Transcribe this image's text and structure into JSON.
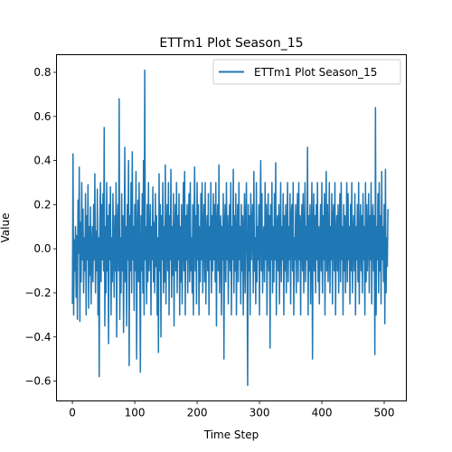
{
  "chart_data": {
    "type": "line",
    "title": "ETTm1 Plot Season_15",
    "xlabel": "Time Step",
    "ylabel": "Value",
    "xlim": [
      -25.5,
      535.5
    ],
    "ylim": [
      -0.69,
      0.88
    ],
    "xticks": [
      0,
      100,
      200,
      300,
      400,
      500
    ],
    "yticks": [
      -0.6,
      -0.4,
      -0.2,
      0.0,
      0.2,
      0.4,
      0.6,
      0.8
    ],
    "ytick_labels": [
      "−0.6",
      "−0.4",
      "−0.2",
      "0.0",
      "0.2",
      "0.4",
      "0.6",
      "0.8"
    ],
    "grid": false,
    "legend_position": "top-right",
    "series": [
      {
        "name": "ETTm1 Plot Season_15",
        "color": "#1f77b4",
        "x_start": 0,
        "x_step": 1,
        "values": [
          -0.25,
          0.43,
          -0.3,
          0.04,
          -0.1,
          0.1,
          -0.22,
          0.06,
          -0.32,
          0.22,
          -0.02,
          0.37,
          -0.33,
          0.12,
          -0.15,
          0.3,
          -0.05,
          0.18,
          -0.2,
          0.05,
          -0.1,
          0.25,
          -0.3,
          0.15,
          -0.05,
          0.29,
          -0.27,
          0.1,
          -0.12,
          0.19,
          -0.25,
          0.0,
          0.1,
          -0.15,
          0.2,
          -0.05,
          0.34,
          -0.2,
          0.08,
          -0.1,
          0.27,
          -0.3,
          0.05,
          -0.58,
          0.12,
          0.3,
          -0.15,
          0.2,
          -0.05,
          0.25,
          -0.1,
          0.55,
          -0.35,
          0.1,
          -0.2,
          0.3,
          -0.1,
          0.15,
          -0.43,
          0.2,
          -0.05,
          0.28,
          -0.3,
          0.05,
          -0.15,
          0.25,
          0.0,
          -0.22,
          0.15,
          -0.1,
          0.3,
          -0.4,
          0.1,
          0.2,
          -0.1,
          0.68,
          -0.32,
          0.05,
          -0.2,
          0.25,
          -0.1,
          0.15,
          -0.38,
          0.0,
          0.46,
          -0.15,
          0.1,
          -0.35,
          0.2,
          -0.05,
          0.4,
          -0.53,
          0.15,
          -0.1,
          0.3,
          -0.2,
          0.44,
          -0.05,
          0.1,
          -0.28,
          0.2,
          -0.1,
          0.35,
          -0.5,
          0.05,
          0.22,
          -0.15,
          0.3,
          -0.05,
          -0.56,
          0.15,
          -0.1,
          0.25,
          -0.2,
          0.4,
          -0.3,
          0.81,
          -0.05,
          0.1,
          -0.25,
          0.2,
          -0.15,
          0.3,
          -0.1,
          0.05,
          0.2,
          -0.3,
          0.1,
          -0.05,
          0.28,
          -0.15,
          0.12,
          -0.2,
          0.25,
          -0.08,
          0.15,
          -0.3,
          0.05,
          -0.47,
          0.34,
          -0.1,
          0.2,
          -0.4,
          0.15,
          -0.05,
          0.3,
          -0.2,
          0.1,
          -0.15,
          0.38,
          -0.25,
          0.05,
          0.2,
          -0.1,
          0.3,
          -0.3,
          0.15,
          -0.05,
          0.36,
          -0.22,
          0.1,
          -0.12,
          0.25,
          -0.35,
          0.05,
          0.2,
          -0.1,
          0.3,
          -0.2,
          0.15,
          -0.05,
          0.25,
          -0.3,
          0.1,
          -0.15,
          0.2,
          -0.25,
          0.05,
          0.3,
          -0.1,
          0.35,
          -0.3,
          0.15,
          -0.05,
          0.2,
          -0.2,
          0.1,
          0.25,
          -0.15,
          0.3,
          -0.1,
          0.05,
          -0.2,
          0.2,
          -0.3,
          0.1,
          0.37,
          -0.1,
          0.15,
          -0.25,
          0.3,
          -0.05,
          0.2,
          -0.3,
          0.1,
          -0.15,
          0.25,
          -0.05,
          0.3,
          -0.2,
          0.1,
          0.2,
          -0.15,
          0.3,
          -0.25,
          0.05,
          0.15,
          -0.1,
          0.25,
          -0.3,
          0.1,
          -0.05,
          0.3,
          -0.2,
          0.15,
          -0.1,
          0.25,
          -0.05,
          0.2,
          -0.15,
          0.3,
          -0.35,
          0.1,
          0.2,
          -0.1,
          0.38,
          -0.2,
          0.05,
          0.15,
          -0.3,
          0.1,
          -0.05,
          0.25,
          -0.5,
          0.1,
          0.2,
          -0.15,
          0.3,
          -0.05,
          0.15,
          -0.25,
          0.05,
          0.2,
          -0.1,
          0.3,
          -0.3,
          0.1,
          -0.05,
          0.36,
          -0.2,
          0.15,
          -0.1,
          0.25,
          -0.3,
          0.05,
          0.2,
          -0.15,
          0.3,
          -0.05,
          0.1,
          -0.25,
          0.2,
          -0.1,
          0.15,
          -0.3,
          0.05,
          0.25,
          -0.2,
          0.1,
          0.3,
          -0.05,
          -0.62,
          0.2,
          -0.1,
          0.15,
          -0.3,
          0.25,
          -0.05,
          0.1,
          0.2,
          -0.2,
          0.35,
          -0.1,
          0.05,
          -0.25,
          0.3,
          -0.15,
          0.1,
          -0.05,
          0.2,
          -0.3,
          0.15,
          0.4,
          -0.1,
          0.25,
          -0.2,
          0.05,
          0.1,
          -0.15,
          0.3,
          -0.05,
          0.2,
          -0.3,
          0.1,
          0.25,
          -0.1,
          0.15,
          -0.45,
          0.2,
          -0.05,
          0.3,
          -0.2,
          0.1,
          -0.15,
          0.25,
          -0.05,
          0.39,
          -0.3,
          0.1,
          0.15,
          -0.1,
          0.2,
          -0.25,
          0.05,
          0.3,
          -0.15,
          0.1,
          -0.05,
          0.25,
          -0.3,
          0.15,
          -0.1,
          0.2,
          -0.2,
          0.05,
          0.3,
          -0.15,
          0.1,
          -0.05,
          0.25,
          -0.25,
          0.15,
          0.2,
          -0.1,
          0.3,
          -0.3,
          0.05,
          -0.05,
          0.2,
          -0.2,
          0.1,
          0.25,
          -0.15,
          0.3,
          -0.05,
          0.15,
          -0.3,
          0.1,
          0.2,
          -0.1,
          0.25,
          -0.2,
          0.05,
          0.3,
          -0.15,
          0.1,
          -0.05,
          0.46,
          -0.3,
          0.15,
          -0.1,
          0.2,
          -0.25,
          0.05,
          0.3,
          -0.5,
          0.1,
          0.25,
          -0.1,
          0.15,
          -0.2,
          0.2,
          -0.05,
          0.3,
          -0.15,
          0.1,
          -0.25,
          0.05,
          0.2,
          -0.1,
          0.3,
          -0.2,
          0.15,
          -0.05,
          0.25,
          -0.3,
          0.1,
          0.35,
          -0.1,
          0.2,
          -0.15,
          0.05,
          0.3,
          -0.2,
          0.1,
          -0.05,
          0.25,
          -0.25,
          0.15,
          0.2,
          -0.1,
          0.3,
          -0.3,
          0.05,
          0.15,
          -0.1,
          0.2,
          -0.2,
          0.1,
          0.25,
          -0.15,
          0.3,
          -0.05,
          0.1,
          -0.3,
          0.2,
          -0.1,
          0.15,
          -0.2,
          0.05,
          0.3,
          -0.15,
          0.25,
          -0.05,
          0.1,
          -0.25,
          0.2,
          -0.1,
          0.3,
          -0.2,
          0.05,
          0.15,
          -0.1,
          0.25,
          -0.3,
          0.1,
          -0.05,
          0.2,
          -0.15,
          0.3,
          -0.25,
          0.05,
          0.2,
          -0.1,
          0.15,
          -0.2,
          0.25,
          -0.05,
          0.1,
          -0.3,
          0.3,
          -0.15,
          0.2,
          -0.1,
          0.05,
          0.25,
          -0.2,
          0.15,
          -0.05,
          0.3,
          -0.25,
          0.1,
          0.2,
          -0.1,
          0.15,
          -0.48,
          0.64,
          -0.3,
          0.1,
          -0.05,
          0.25,
          -0.2,
          0.3,
          -0.1,
          0.15,
          -0.25,
          0.35,
          -0.05,
          0.1,
          -0.15,
          0.2,
          -0.34,
          0.36,
          -0.2,
          0.05,
          -0.08,
          0.18
        ]
      }
    ]
  }
}
